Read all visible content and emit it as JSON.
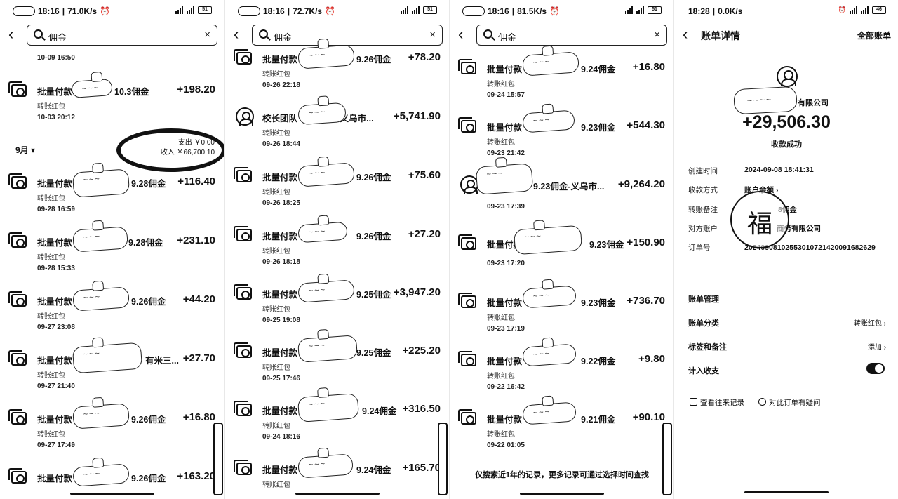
{
  "icons": {
    "back": "‹",
    "clear": "×",
    "chevron": "›",
    "fu_glyph": "福",
    "question": "?"
  },
  "screens": [
    {
      "status": {
        "time": "18:16",
        "speed": "71.0K/s",
        "battery": "51"
      },
      "search": {
        "value": "佣金"
      },
      "top_time": "10-09 16:50",
      "month": {
        "label": "9月 ▾",
        "expense": "支出 ￥0.00",
        "income": "收入 ￥66,700.10"
      },
      "items": [
        {
          "title_a": "批量付款",
          "title_b": "10.3佣金",
          "sub": "转账红包",
          "time": "10-03 20:12",
          "amount": "+198.20"
        },
        {
          "title_a": "批量付款",
          "title_b": "9.28佣金",
          "sub": "转账红包",
          "time": "09-28 16:59",
          "amount": "+116.40"
        },
        {
          "title_a": "批量付款",
          "title_b": "9.28佣金",
          "sub": "转账红包",
          "time": "09-28 15:33",
          "amount": "+231.10"
        },
        {
          "title_a": "批量付款",
          "title_b": "9.26佣金",
          "sub": "转账红包",
          "time": "09-27 23:08",
          "amount": "+44.20"
        },
        {
          "title_a": "批量付款",
          "title_b": "有米三...",
          "sub": "转账红包",
          "time": "09-27 21:40",
          "amount": "+27.70"
        },
        {
          "title_a": "批量付款",
          "title_b": "9.26佣金",
          "sub": "转账红包",
          "time": "09-27 17:49",
          "amount": "+16.80"
        },
        {
          "title_a": "批量付款",
          "title_b": "9.26佣金",
          "sub": "转账红包",
          "time": "",
          "amount": "+163.20"
        }
      ]
    },
    {
      "status": {
        "time": "18:16",
        "speed": "72.7K/s",
        "battery": "51"
      },
      "search": {
        "value": "佣金"
      },
      "items": [
        {
          "title_a": "批量付款",
          "title_b": "9.26佣金",
          "sub": "转账红包",
          "time": "09-26 22:18",
          "amount": "+78.20"
        },
        {
          "title_a": "校长团队",
          "title_b": "金-义乌市...",
          "sub": "转账红包",
          "time": "09-26 18:44",
          "amount": "+5,741.90"
        },
        {
          "title_a": "批量付款",
          "title_b": "9.26佣金",
          "sub": "转账红包",
          "time": "09-26 18:25",
          "amount": "+75.60"
        },
        {
          "title_a": "批量付款",
          "title_b": "9.26佣金",
          "sub": "转账红包",
          "time": "09-26 18:18",
          "amount": "+27.20"
        },
        {
          "title_a": "批量付款",
          "title_b": "9.25佣金",
          "sub": "转账红包",
          "time": "09-25 19:08",
          "amount": "+3,947.20"
        },
        {
          "title_a": "批量付款",
          "title_b": "9.25佣金",
          "sub": "转账红包",
          "time": "09-25 17:46",
          "amount": "+225.20"
        },
        {
          "title_a": "批量付款",
          "title_b": "9.24佣金",
          "sub": "转账红包",
          "time": "09-24 18:16",
          "amount": "+316.50"
        },
        {
          "title_a": "批量付款",
          "title_b": "9.24佣金",
          "sub": "转账红包",
          "time": "",
          "amount": "+165.70"
        }
      ]
    },
    {
      "status": {
        "time": "18:16",
        "speed": "81.5K/s",
        "battery": "51"
      },
      "search": {
        "value": "佣金"
      },
      "items": [
        {
          "title_a": "批量付款",
          "title_b": "9.24佣金",
          "sub": "转账红包",
          "time": "09-24 15:57",
          "amount": "+16.80"
        },
        {
          "title_a": "批量付款",
          "title_b": "9.23佣金",
          "sub": "转账红包",
          "time": "09-23 21:42",
          "amount": "+544.30"
        },
        {
          "title_a": "",
          "title_b": "9.23佣金-义乌市...",
          "sub": "",
          "time": "09-23 17:39",
          "amount": "+9,264.20"
        },
        {
          "title_a": "批量付款",
          "title_b": "9.23佣金",
          "sub": "",
          "time": "09-23 17:20",
          "amount": "+150.90"
        },
        {
          "title_a": "批量付款",
          "title_b": "9.23佣金",
          "sub": "转账红包",
          "time": "09-23 17:19",
          "amount": "+736.70"
        },
        {
          "title_a": "批量付款",
          "title_b": "9.22佣金",
          "sub": "转账红包",
          "time": "09-22 16:42",
          "amount": "+9.80"
        },
        {
          "title_a": "批量付款",
          "title_b": "9.21佣金",
          "sub": "转账红包",
          "time": "09-22 01:05",
          "amount": "+90.10"
        }
      ],
      "footer": "仅搜索近1年的记录，更多记录可通过选择时间查找"
    },
    {
      "status": {
        "time": "18:28",
        "speed": "0.0K/s",
        "battery": "46"
      },
      "title": "账单详情",
      "all_bills": "全部账单",
      "company": "有限公司",
      "amount": "+29,506.30",
      "status_text": "收款成功",
      "rows": [
        {
          "label": "创建时间",
          "value": "2024-09-08 18:41:31"
        },
        {
          "label": "收款方式",
          "value": "账户余额 ›"
        },
        {
          "label": "转账备注",
          "value": "8佣金"
        },
        {
          "label": "对方账户",
          "value": "商务有限公司"
        },
        {
          "label": "订单号",
          "value": "20240908102553010721420091682629"
        }
      ],
      "menu": [
        {
          "label": "账单管理",
          "right": ""
        },
        {
          "label": "账单分类",
          "right": "转账红包 ›"
        },
        {
          "label": "标签和备注",
          "right": "添加 ›"
        },
        {
          "label": "计入收支",
          "right": ""
        }
      ],
      "links": {
        "history": "查看往来记录",
        "question": "对此订单有疑问"
      }
    }
  ]
}
